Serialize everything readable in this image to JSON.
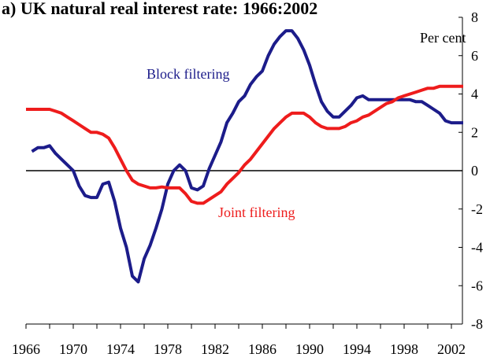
{
  "chart_data": {
    "type": "line",
    "title": "a) UK natural real interest rate: 1966:2002",
    "y_unit_label": "Per cent",
    "x": [
      1966,
      1966.5,
      1967,
      1967.5,
      1968,
      1968.5,
      1969,
      1969.5,
      1970,
      1970.5,
      1971,
      1971.5,
      1972,
      1972.5,
      1973,
      1973.5,
      1974,
      1974.5,
      1975,
      1975.5,
      1976,
      1976.5,
      1977,
      1977.5,
      1978,
      1978.5,
      1979,
      1979.5,
      1980,
      1980.5,
      1981,
      1981.5,
      1982,
      1982.5,
      1983,
      1983.5,
      1984,
      1984.5,
      1985,
      1985.5,
      1986,
      1986.5,
      1987,
      1987.5,
      1988,
      1988.5,
      1989,
      1989.5,
      1990,
      1990.5,
      1991,
      1991.5,
      1992,
      1992.5,
      1993,
      1993.5,
      1994,
      1994.5,
      1995,
      1995.5,
      1996,
      1996.5,
      1997,
      1997.5,
      1998,
      1998.5,
      1999,
      1999.5,
      2000,
      2000.5,
      2001,
      2001.5,
      2002,
      2002.5,
      2003
    ],
    "series": [
      {
        "name": "Block filtering",
        "color": "#1c1c8a",
        "values": [
          null,
          1.0,
          1.2,
          1.2,
          1.3,
          0.9,
          0.6,
          0.3,
          0.0,
          -0.8,
          -1.3,
          -1.4,
          -1.4,
          -0.7,
          -0.6,
          -1.6,
          -3.0,
          -4.0,
          -5.5,
          -5.8,
          -4.6,
          -3.9,
          -3.0,
          -2.0,
          -0.7,
          0.0,
          0.3,
          0.0,
          -0.9,
          -1.0,
          -0.8,
          0.1,
          0.8,
          1.5,
          2.5,
          3.0,
          3.6,
          3.9,
          4.5,
          4.9,
          5.2,
          6.0,
          6.6,
          7.0,
          7.3,
          7.3,
          6.9,
          6.3,
          5.5,
          4.5,
          3.6,
          3.1,
          2.8,
          2.8,
          3.1,
          3.4,
          3.8,
          3.9,
          3.7,
          3.7,
          3.7,
          3.7,
          3.7,
          3.7,
          3.7,
          3.7,
          3.6,
          3.6,
          3.4,
          3.2,
          3.0,
          2.6,
          2.5,
          2.5,
          2.5
        ]
      },
      {
        "name": "Joint filtering",
        "color": "#ee1c1c",
        "values": [
          3.2,
          3.2,
          3.2,
          3.2,
          3.2,
          3.1,
          3.0,
          2.8,
          2.6,
          2.4,
          2.2,
          2.0,
          2.0,
          1.9,
          1.7,
          1.2,
          0.6,
          0.0,
          -0.5,
          -0.7,
          -0.8,
          -0.9,
          -0.9,
          -0.85,
          -0.9,
          -0.9,
          -0.9,
          -1.2,
          -1.6,
          -1.7,
          -1.7,
          -1.5,
          -1.3,
          -1.1,
          -0.7,
          -0.4,
          -0.1,
          0.3,
          0.6,
          1.0,
          1.4,
          1.8,
          2.2,
          2.5,
          2.8,
          3.0,
          3.0,
          3.0,
          2.8,
          2.5,
          2.3,
          2.2,
          2.2,
          2.2,
          2.3,
          2.5,
          2.6,
          2.8,
          2.9,
          3.1,
          3.3,
          3.5,
          3.6,
          3.8,
          3.9,
          4.0,
          4.1,
          4.2,
          4.3,
          4.3,
          4.4,
          4.4,
          4.4,
          4.4,
          4.4
        ]
      }
    ],
    "xlim": [
      1966,
      2003
    ],
    "xticks": [
      1966,
      1970,
      1974,
      1978,
      1982,
      1986,
      1990,
      1994,
      1998,
      2002
    ],
    "xminorticks": [
      1968,
      1972,
      1976,
      1980,
      1984,
      1988,
      1992,
      1996,
      2000
    ],
    "ylim": [
      -8,
      8
    ],
    "yticks": [
      -8,
      -6,
      -4,
      -2,
      0,
      2,
      4,
      6,
      8
    ],
    "zero_line": 0
  }
}
